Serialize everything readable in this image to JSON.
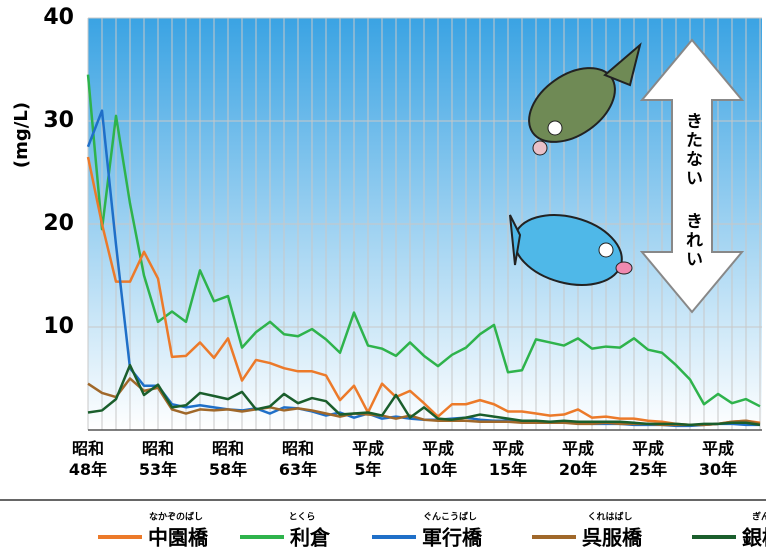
{
  "chart_data": {
    "type": "line",
    "y_label": "(mg/L)",
    "ylim": [
      0,
      40
    ],
    "yticks": [
      10,
      20,
      30,
      40
    ],
    "grid": true,
    "categories": [
      "昭和\n48年",
      null,
      null,
      null,
      null,
      "昭和\n53年",
      null,
      null,
      null,
      null,
      "昭和\n58年",
      null,
      null,
      null,
      null,
      "昭和\n63年",
      null,
      null,
      null,
      null,
      "平成\n5年",
      null,
      null,
      null,
      null,
      "平成\n10年",
      null,
      null,
      null,
      null,
      "平成\n15年",
      null,
      null,
      null,
      null,
      "平成\n20年",
      null,
      null,
      null,
      null,
      "平成\n25年",
      null,
      null,
      null,
      null,
      "平成\n30年",
      null,
      null,
      null
    ],
    "series": [
      {
        "name": "中園橋",
        "reading": "なかぞのばし",
        "color": "#ec7a2a",
        "values": [
          26.5,
          20,
          14.4,
          14.4,
          17.3,
          14.7,
          7.1,
          7.2,
          8.5,
          7,
          8.9,
          4.8,
          6.8,
          6.5,
          6,
          5.7,
          5.7,
          5.3,
          2.9,
          4.3,
          1.7,
          4.5,
          3.2,
          3.8,
          2.6,
          1.3,
          2.5,
          2.5,
          2.9,
          2.5,
          1.8,
          1.8,
          1.6,
          1.4,
          1.5,
          2,
          1.2,
          1.3,
          1.1,
          1.1,
          0.9,
          0.8,
          0.6,
          0.5,
          0.5,
          0.6,
          0.8,
          0.9,
          0.7
        ]
      },
      {
        "name": "利倉",
        "reading": "とくら",
        "color": "#2eb34c",
        "values": [
          34.5,
          19.5,
          30.5,
          22,
          15,
          10.5,
          11.5,
          10.5,
          15.5,
          12.5,
          13,
          8,
          9.5,
          10.5,
          9.3,
          9.1,
          9.8,
          8.8,
          7.5,
          11.4,
          8.2,
          7.9,
          7.2,
          8.5,
          7.2,
          6.2,
          7.3,
          8,
          9.3,
          10.2,
          5.6,
          5.8,
          8.8,
          8.5,
          8.2,
          8.9,
          7.9,
          8.1,
          8,
          8.9,
          7.8,
          7.5,
          6.3,
          4.9,
          2.5,
          3.5,
          2.6,
          3,
          2.3
        ]
      },
      {
        "name": "軍行橋",
        "reading": "ぐんこうばし",
        "color": "#1f6fc8",
        "values": [
          27.5,
          31,
          18,
          6,
          4.3,
          4.3,
          2.5,
          2.2,
          2.4,
          2.2,
          2,
          1.9,
          2.1,
          1.6,
          2.2,
          2.1,
          1.8,
          1.4,
          1.7,
          1.2,
          1.6,
          1.1,
          1.3,
          1.1,
          1,
          1,
          1.1,
          1.2,
          1,
          0.9,
          0.9,
          0.8,
          0.8,
          0.7,
          0.7,
          0.7,
          0.6,
          0.6,
          0.6,
          0.5,
          0.5,
          0.5,
          0.4,
          0.4,
          0.5,
          0.6,
          0.6,
          0.5,
          0.5
        ]
      },
      {
        "name": "呉服橋",
        "reading": "くれはばし",
        "color": "#a0682a",
        "values": [
          4.5,
          3.6,
          3.2,
          5,
          3.8,
          4.1,
          2,
          1.6,
          2,
          1.9,
          2,
          1.8,
          2,
          2.2,
          1.9,
          2.1,
          1.9,
          1.6,
          1.3,
          1.6,
          1.5,
          1.4,
          1.1,
          1.4,
          1,
          0.9,
          0.9,
          0.9,
          0.8,
          0.8,
          0.8,
          0.7,
          0.7,
          0.7,
          0.7,
          0.6,
          0.6,
          0.7,
          0.6,
          0.6,
          0.6,
          0.5,
          0.5,
          0.5,
          0.5,
          0.6,
          0.8,
          0.9,
          0.6
        ]
      },
      {
        "name": "銀橋",
        "reading": "ぎんばし",
        "color": "#1a5e2c",
        "values": [
          1.7,
          1.9,
          3,
          6.3,
          3.4,
          4.4,
          2.2,
          2.4,
          3.6,
          3.3,
          3,
          3.7,
          2,
          2.3,
          3.5,
          2.6,
          3.1,
          2.8,
          1.5,
          1.6,
          1.7,
          1.4,
          3.4,
          1.2,
          2.2,
          1.1,
          1,
          1.2,
          1.5,
          1.3,
          1.1,
          0.9,
          0.9,
          0.8,
          0.9,
          0.8,
          0.8,
          0.8,
          0.8,
          0.7,
          0.6,
          0.6,
          0.6,
          0.5,
          0.6,
          0.6,
          0.7,
          0.7,
          0.5
        ]
      }
    ],
    "annotations": [
      "きたない",
      "きれい"
    ]
  }
}
